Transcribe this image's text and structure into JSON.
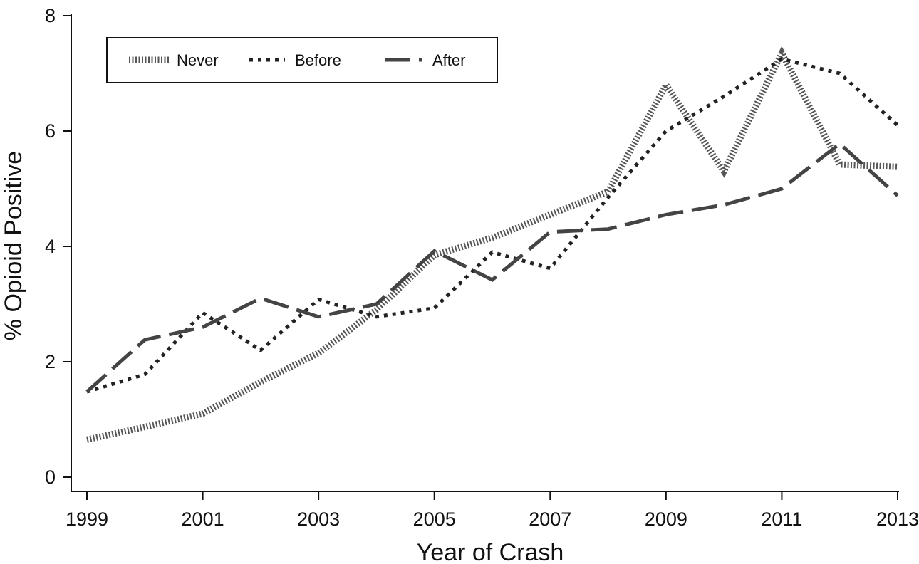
{
  "chart_data": {
    "type": "line",
    "title": "",
    "xlabel": "Year of Crash",
    "ylabel": "% Opioid Positive",
    "xlim": [
      1999,
      2013
    ],
    "ylim": [
      0,
      8
    ],
    "xticks": [
      1999,
      2001,
      2003,
      2005,
      2007,
      2009,
      2011,
      2013
    ],
    "yticks": [
      0,
      2,
      4,
      6,
      8
    ],
    "grid": false,
    "legend_position": "top-left",
    "x": [
      1999,
      2000,
      2001,
      2002,
      2003,
      2004,
      2005,
      2006,
      2007,
      2008,
      2009,
      2010,
      2011,
      2012,
      2013
    ],
    "series": [
      {
        "name": "Never",
        "style": "hatched",
        "color": "#555555",
        "values": [
          0.65,
          0.87,
          1.1,
          1.65,
          2.15,
          2.9,
          3.85,
          4.15,
          4.55,
          4.95,
          6.8,
          5.3,
          7.35,
          5.42,
          5.38
        ]
      },
      {
        "name": "Before",
        "style": "dotted",
        "color": "#222222",
        "values": [
          1.48,
          1.78,
          2.85,
          2.2,
          3.08,
          2.78,
          2.93,
          3.9,
          3.62,
          4.85,
          6.0,
          6.6,
          7.25,
          7.0,
          6.1
        ]
      },
      {
        "name": "After",
        "style": "dashed",
        "color": "#444444",
        "values": [
          1.48,
          2.38,
          2.6,
          3.1,
          2.78,
          3.0,
          3.92,
          3.42,
          4.25,
          4.3,
          4.55,
          4.72,
          5.0,
          5.78,
          4.88
        ]
      }
    ]
  }
}
